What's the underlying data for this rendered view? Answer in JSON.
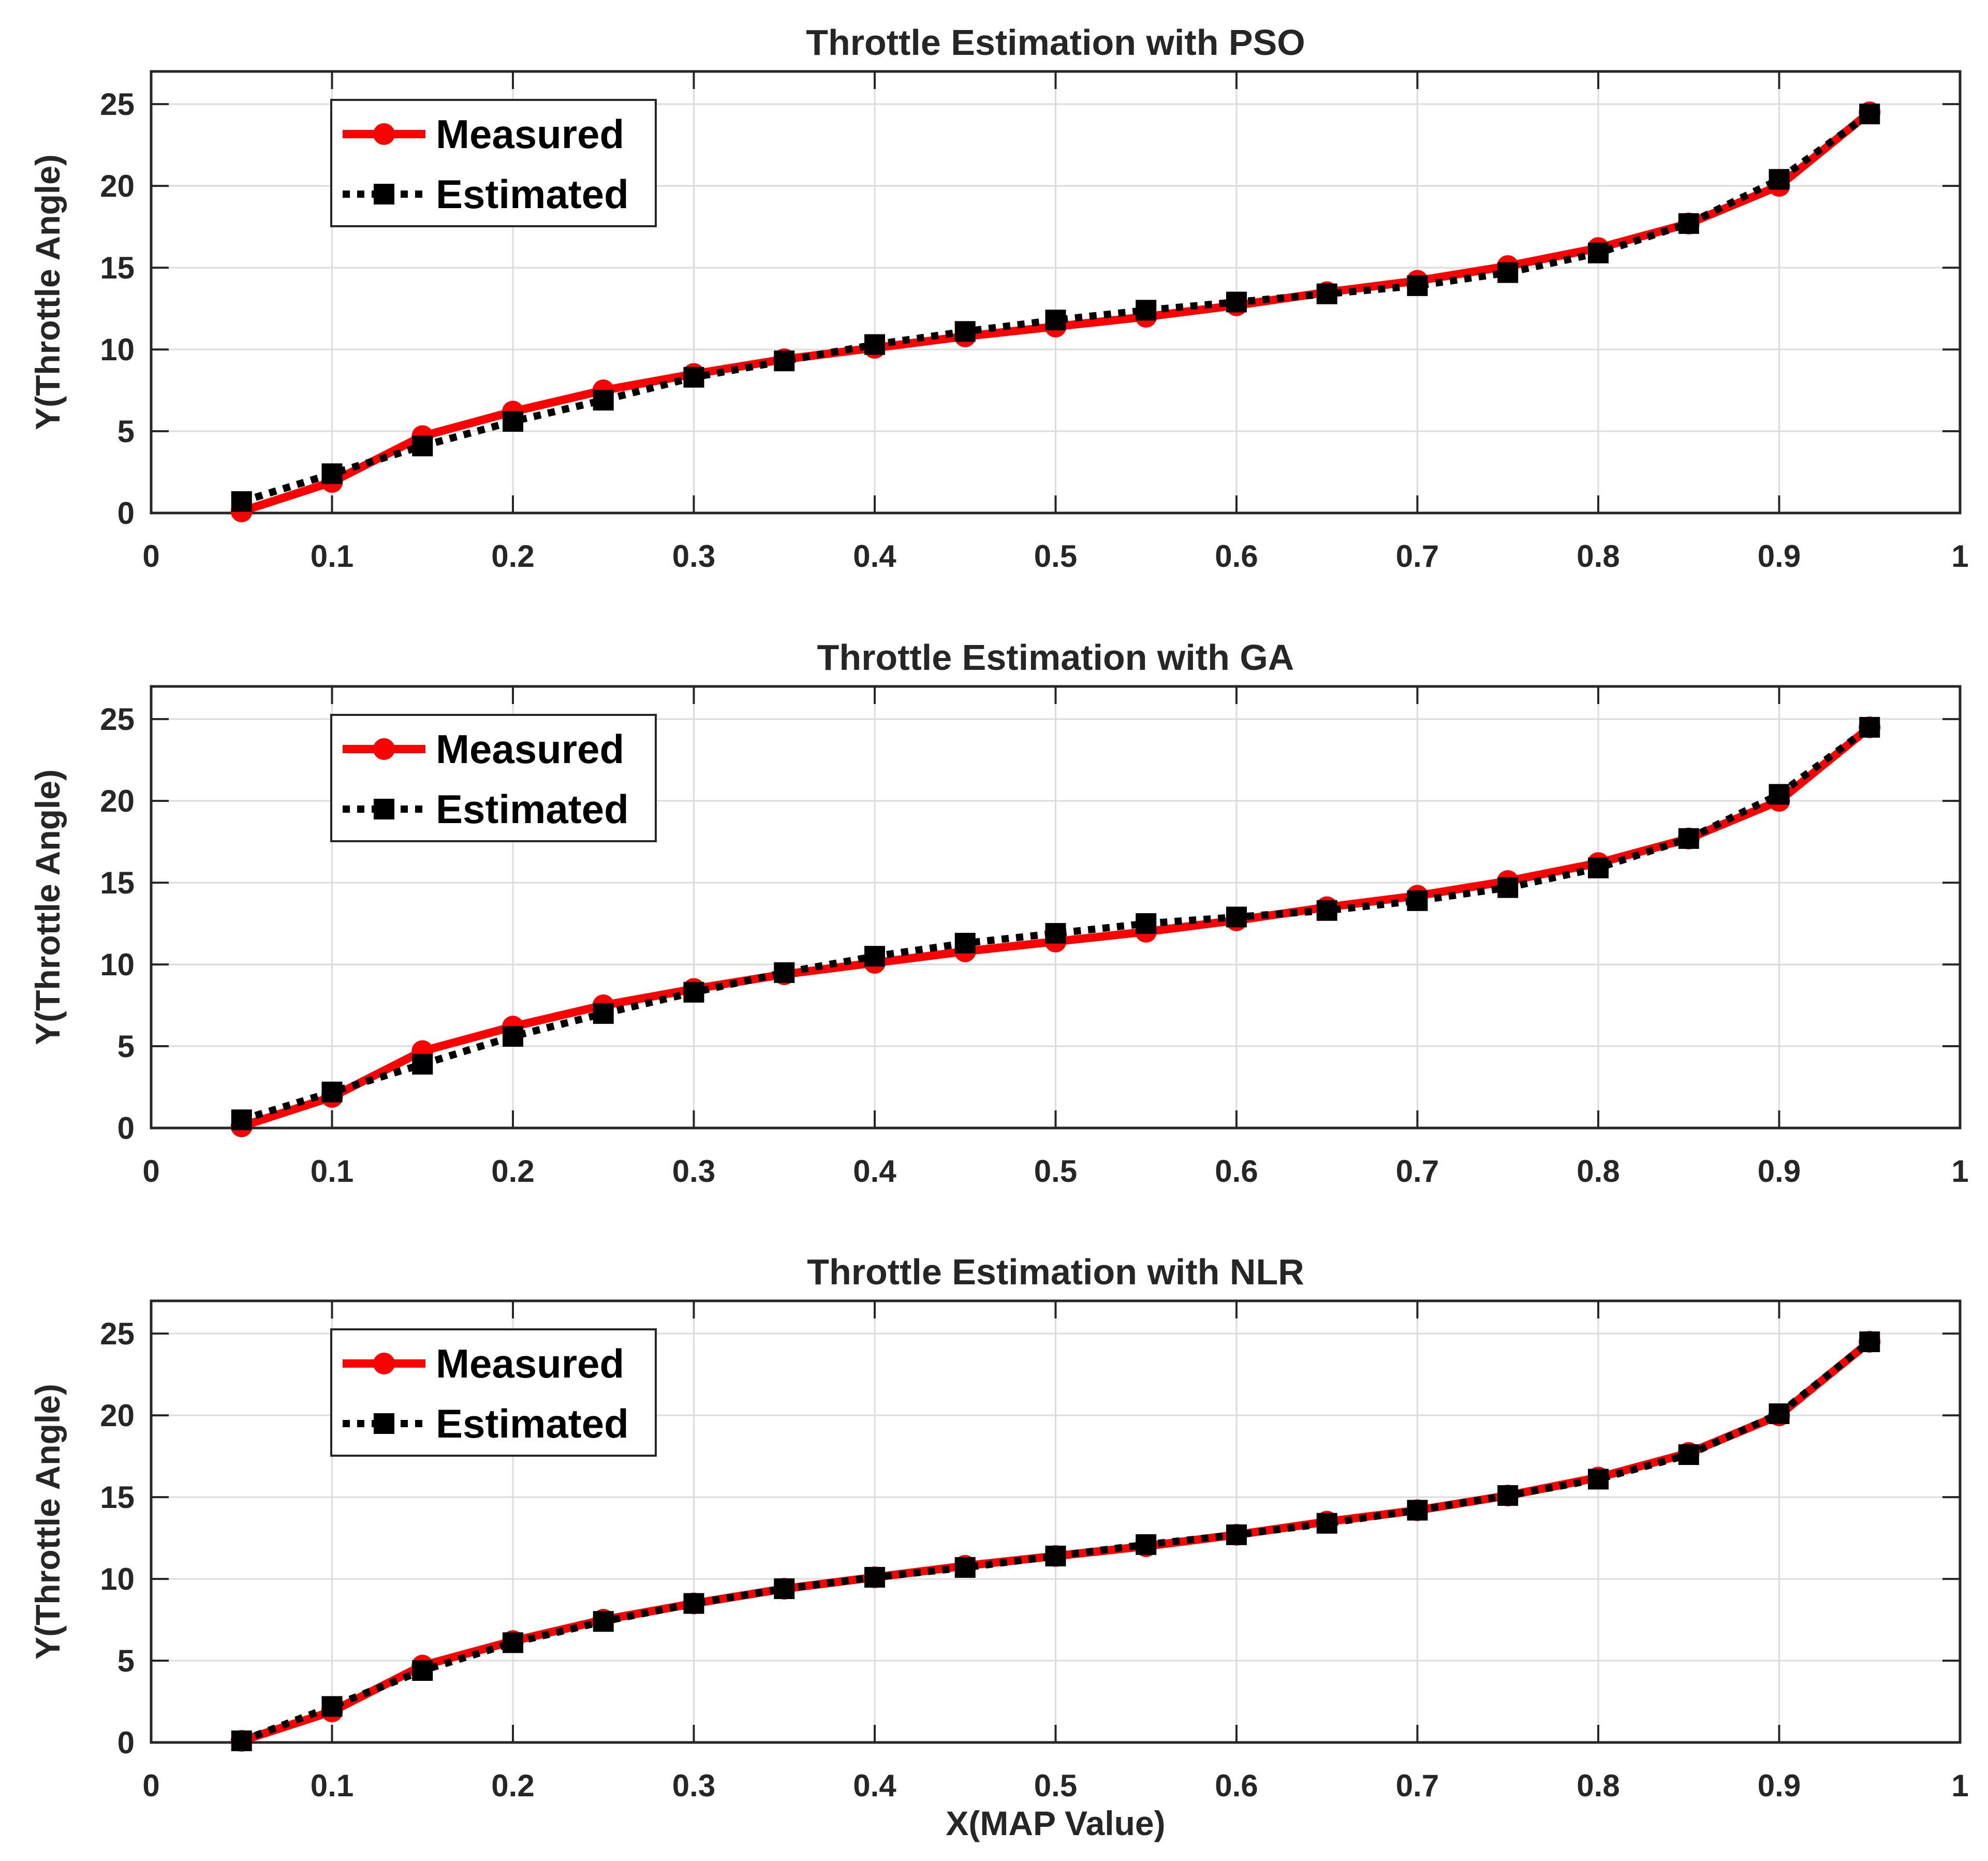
{
  "figure": {
    "xlabel": "X(MAP Value)"
  },
  "chart_data": [
    {
      "type": "line",
      "title": "Throttle Estimation with PSO",
      "xlabel": "",
      "ylabel": "Y(Throttle Angle)",
      "xlim": [
        0,
        1
      ],
      "ylim": [
        0,
        27
      ],
      "grid": true,
      "legend_position": "top-left",
      "xticks": [
        0,
        0.1,
        0.2,
        0.3,
        0.4,
        0.5,
        0.6,
        0.7,
        0.8,
        0.9,
        1
      ],
      "xtick_labels": [
        "0",
        "0.1",
        "0.2",
        "0.3",
        "0.4",
        "0.5",
        "0.6",
        "0.7",
        "0.8",
        "0.9",
        "1"
      ],
      "yticks": [
        0,
        5,
        10,
        15,
        20,
        25
      ],
      "ytick_labels": [
        "0",
        "5",
        "10",
        "15",
        "20",
        "25"
      ],
      "x": [
        0.05,
        0.1,
        0.15,
        0.2,
        0.25,
        0.3,
        0.35,
        0.4,
        0.45,
        0.5,
        0.55,
        0.6,
        0.65,
        0.7,
        0.75,
        0.8,
        0.85,
        0.9,
        0.95
      ],
      "series": [
        {
          "name": "Measured",
          "color": "#ff0000",
          "style": "solid",
          "marker": "circle",
          "values": [
            0.1,
            1.9,
            4.7,
            6.2,
            7.5,
            8.5,
            9.4,
            10.1,
            10.8,
            11.4,
            12.0,
            12.7,
            13.5,
            14.2,
            15.1,
            16.2,
            17.7,
            20.0,
            24.5
          ]
        },
        {
          "name": "Estimated",
          "color": "#000000",
          "style": "dotted",
          "marker": "square",
          "values": [
            0.7,
            2.4,
            4.1,
            5.6,
            6.9,
            8.3,
            9.3,
            10.3,
            11.1,
            11.8,
            12.4,
            12.9,
            13.4,
            13.9,
            14.7,
            15.9,
            17.7,
            20.4,
            24.4
          ]
        }
      ]
    },
    {
      "type": "line",
      "title": "Throttle Estimation with GA",
      "xlabel": "",
      "ylabel": "Y(Throttle Angle)",
      "xlim": [
        0,
        1
      ],
      "ylim": [
        0,
        27
      ],
      "grid": true,
      "legend_position": "top-left",
      "xticks": [
        0,
        0.1,
        0.2,
        0.3,
        0.4,
        0.5,
        0.6,
        0.7,
        0.8,
        0.9,
        1
      ],
      "xtick_labels": [
        "0",
        "0.1",
        "0.2",
        "0.3",
        "0.4",
        "0.5",
        "0.6",
        "0.7",
        "0.8",
        "0.9",
        "1"
      ],
      "yticks": [
        0,
        5,
        10,
        15,
        20,
        25
      ],
      "ytick_labels": [
        "0",
        "5",
        "10",
        "15",
        "20",
        "25"
      ],
      "x": [
        0.05,
        0.1,
        0.15,
        0.2,
        0.25,
        0.3,
        0.35,
        0.4,
        0.45,
        0.5,
        0.55,
        0.6,
        0.65,
        0.7,
        0.75,
        0.8,
        0.85,
        0.9,
        0.95
      ],
      "series": [
        {
          "name": "Measured",
          "color": "#ff0000",
          "style": "solid",
          "marker": "circle",
          "values": [
            0.1,
            1.9,
            4.7,
            6.2,
            7.5,
            8.5,
            9.4,
            10.1,
            10.8,
            11.4,
            12.0,
            12.7,
            13.5,
            14.2,
            15.1,
            16.2,
            17.7,
            20.0,
            24.5
          ]
        },
        {
          "name": "Estimated",
          "color": "#000000",
          "style": "dotted",
          "marker": "square",
          "values": [
            0.5,
            2.2,
            3.9,
            5.6,
            7.0,
            8.3,
            9.5,
            10.5,
            11.3,
            11.9,
            12.5,
            12.9,
            13.3,
            13.9,
            14.7,
            15.9,
            17.7,
            20.4,
            24.5
          ]
        }
      ]
    },
    {
      "type": "line",
      "title": "Throttle Estimation with NLR",
      "xlabel": "X(MAP Value)",
      "ylabel": "Y(Throttle Angle)",
      "xlim": [
        0,
        1
      ],
      "ylim": [
        0,
        27
      ],
      "grid": true,
      "legend_position": "top-left",
      "xticks": [
        0,
        0.1,
        0.2,
        0.3,
        0.4,
        0.5,
        0.6,
        0.7,
        0.8,
        0.9,
        1
      ],
      "xtick_labels": [
        "0",
        "0.1",
        "0.2",
        "0.3",
        "0.4",
        "0.5",
        "0.6",
        "0.7",
        "0.8",
        "0.9",
        "1"
      ],
      "yticks": [
        0,
        5,
        10,
        15,
        20,
        25
      ],
      "ytick_labels": [
        "0",
        "5",
        "10",
        "15",
        "20",
        "25"
      ],
      "x": [
        0.05,
        0.1,
        0.15,
        0.2,
        0.25,
        0.3,
        0.35,
        0.4,
        0.45,
        0.5,
        0.55,
        0.6,
        0.65,
        0.7,
        0.75,
        0.8,
        0.85,
        0.9,
        0.95
      ],
      "series": [
        {
          "name": "Measured",
          "color": "#ff0000",
          "style": "solid",
          "marker": "circle",
          "values": [
            0.1,
            1.9,
            4.7,
            6.2,
            7.5,
            8.5,
            9.4,
            10.1,
            10.8,
            11.4,
            12.0,
            12.7,
            13.5,
            14.2,
            15.1,
            16.2,
            17.7,
            20.0,
            24.5
          ]
        },
        {
          "name": "Estimated",
          "color": "#000000",
          "style": "dotted",
          "marker": "square",
          "values": [
            0.1,
            2.2,
            4.4,
            6.1,
            7.4,
            8.5,
            9.4,
            10.1,
            10.7,
            11.4,
            12.1,
            12.7,
            13.4,
            14.2,
            15.1,
            16.1,
            17.6,
            20.1,
            24.5
          ]
        }
      ]
    }
  ]
}
